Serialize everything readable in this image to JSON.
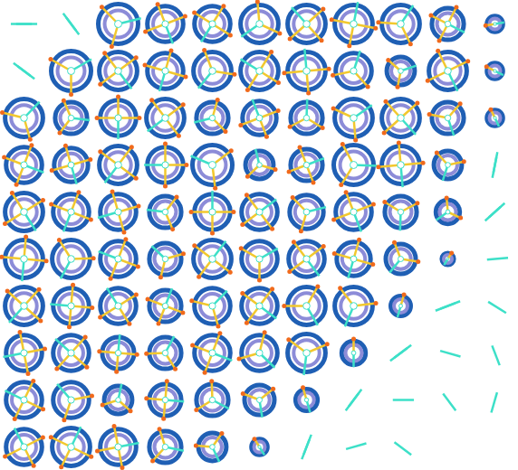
{
  "chart_data": {
    "type": "glyph_grid",
    "tick_labels": false,
    "colors": [
      "#1f5fb4",
      "#8c8cd8",
      "#f2c82e",
      "#f06a1c",
      "#3de0c8"
    ],
    "values": [
      [
        0,
        0,
        1.0,
        0.9,
        0.9,
        0.95,
        0.95,
        0.95,
        0.95,
        0.8,
        0.4
      ],
      [
        0,
        1.0,
        0.95,
        0.9,
        0.95,
        0.95,
        0.95,
        0.9,
        0.7,
        0.95,
        0.4
      ],
      [
        0.95,
        0.8,
        0.9,
        0.95,
        0.8,
        0.85,
        0.8,
        0.95,
        0.95,
        0.8,
        0.4
      ],
      [
        0.9,
        0.85,
        0.95,
        0.9,
        1.0,
        0.7,
        0.8,
        1.0,
        0.95,
        0.7,
        0
      ],
      [
        0.95,
        0.9,
        0.9,
        0.8,
        0.9,
        0.9,
        0.85,
        0.9,
        0.8,
        0.6,
        0
      ],
      [
        0.95,
        0.95,
        0.9,
        0.8,
        0.95,
        0.9,
        0.9,
        0.85,
        0.75,
        0.3,
        0
      ],
      [
        0.95,
        0.9,
        0.9,
        0.8,
        0.9,
        0.9,
        0.95,
        0.95,
        0.5,
        0,
        0
      ],
      [
        0.9,
        0.9,
        0.8,
        0.8,
        0.9,
        0.9,
        0.95,
        0.6,
        0,
        0,
        0
      ],
      [
        0.9,
        0.9,
        0.7,
        0.8,
        0.8,
        0.75,
        0.55,
        0,
        0,
        0,
        0
      ],
      [
        0.9,
        0.95,
        0.9,
        0.8,
        0.7,
        0.4,
        0,
        0,
        0,
        0,
        0
      ]
    ],
    "spokes": [
      [
        2,
        2,
        3,
        4,
        4,
        3,
        4,
        4,
        3,
        4,
        2
      ],
      [
        2,
        3,
        4,
        4,
        3,
        4,
        4,
        3,
        3,
        4,
        2
      ],
      [
        3,
        3,
        4,
        4,
        3,
        4,
        3,
        3,
        4,
        3,
        2
      ],
      [
        4,
        4,
        4,
        4,
        3,
        3,
        4,
        3,
        4,
        3,
        2
      ],
      [
        4,
        4,
        4,
        3,
        4,
        4,
        3,
        4,
        3,
        3,
        2
      ],
      [
        4,
        3,
        4,
        3,
        4,
        3,
        4,
        4,
        3,
        2,
        1
      ],
      [
        4,
        4,
        4,
        4,
        3,
        4,
        3,
        3,
        2,
        2,
        1
      ],
      [
        4,
        4,
        4,
        3,
        4,
        3,
        3,
        2,
        2,
        1,
        1
      ],
      [
        4,
        3,
        3,
        4,
        3,
        3,
        2,
        2,
        1,
        1,
        1
      ],
      [
        4,
        4,
        4,
        3,
        3,
        2,
        2,
        1,
        1,
        0,
        0
      ]
    ]
  }
}
